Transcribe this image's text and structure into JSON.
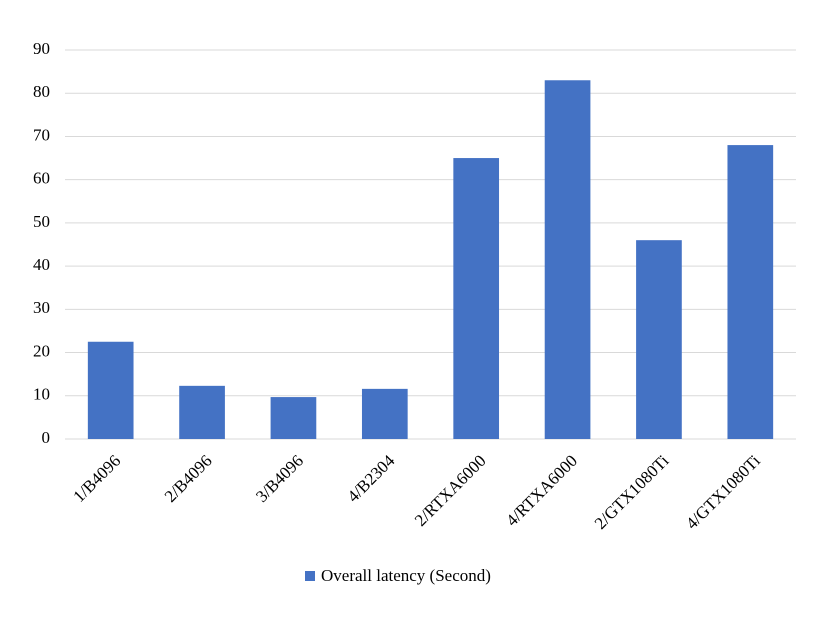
{
  "chart_data": {
    "type": "bar",
    "categories": [
      "1/B4096",
      "2/B4096",
      "3/B4096",
      "4/B2304",
      "2/RTXA6000",
      "4/RTXA6000",
      "2/GTX1080Ti",
      "4/GTX1080Ti"
    ],
    "series": [
      {
        "name": "Overall latency (Second)",
        "color": "#4472c4",
        "values": [
          22.5,
          12.3,
          9.7,
          11.6,
          65,
          83,
          46,
          68
        ]
      }
    ],
    "ylim": [
      0,
      90
    ],
    "yticks": [
      0,
      10,
      20,
      30,
      40,
      50,
      60,
      70,
      80,
      90
    ],
    "grid": true,
    "legend": "bottom"
  }
}
